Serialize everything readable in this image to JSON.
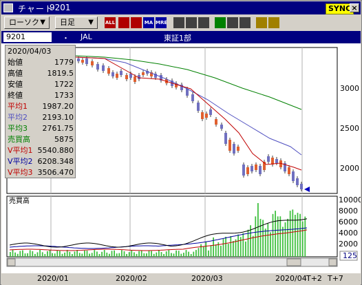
{
  "window": {
    "title": "チャート",
    "code": "9201",
    "sync_label": "SYNC",
    "close_label": "×"
  },
  "toolbar": {
    "chart_type": "ローソク",
    "period": "日足",
    "buttons": [
      {
        "name": "all-icon",
        "label": "ALL",
        "color": "#b00000"
      },
      {
        "name": "bar-icon",
        "label": "",
        "color": "#b00000"
      },
      {
        "name": "candle-icon",
        "label": "",
        "color": "#b00000"
      },
      {
        "name": "ma-icon",
        "label": "MA",
        "color": "#0000a0"
      },
      {
        "name": "mre-icon",
        "label": "MRE",
        "color": "#0000a0"
      },
      {
        "name": "zoom-icon",
        "label": "",
        "color": "#404040"
      },
      {
        "name": "settings-icon",
        "label": "",
        "color": "#404040"
      },
      {
        "name": "indicator-icon",
        "label": "",
        "color": "#404040"
      },
      {
        "name": "pen-icon",
        "label": "",
        "color": "#008000"
      },
      {
        "name": "pointer-icon",
        "label": "",
        "color": "#404040"
      },
      {
        "name": "eraser-icon",
        "label": "",
        "color": "#404040"
      },
      {
        "name": "key-icon",
        "label": "",
        "color": "#a08000"
      },
      {
        "name": "fib-icon",
        "label": "",
        "color": "#a08000"
      }
    ]
  },
  "info": {
    "code": "9201",
    "dot": "・",
    "name": "JAL",
    "market": "東証1部"
  },
  "panel": {
    "date": "2020/04/03",
    "rows": [
      {
        "k": "始値",
        "v": "1779",
        "c": "#000000"
      },
      {
        "k": "高値",
        "v": "1819.5",
        "c": "#000000"
      },
      {
        "k": "安値",
        "v": "1722",
        "c": "#000000"
      },
      {
        "k": "終値",
        "v": "1733",
        "c": "#000000"
      },
      {
        "k": "平均1",
        "v": "1987.20",
        "c": "#c00000"
      },
      {
        "k": "平均2",
        "v": "2193.10",
        "c": "#5050c0"
      },
      {
        "k": "平均3",
        "v": "2761.75",
        "c": "#008000"
      },
      {
        "k": "売買高",
        "v": "5875",
        "c": "#008000"
      },
      {
        "k": "V平均1",
        "v": "5540.880",
        "c": "#c00000"
      },
      {
        "k": "V平均2",
        "v": "6208.348",
        "c": "#0000a0"
      },
      {
        "k": "V平均3",
        "v": "3506.470",
        "c": "#c00000"
      }
    ]
  },
  "price_axis": [
    "3000",
    "2500",
    "2000"
  ],
  "volume_axis": [
    "10000",
    "8000",
    "6000",
    "4000",
    "2000"
  ],
  "volume_label": "売買高",
  "scroll_value": "125",
  "x_labels": [
    "2020/01",
    "2020/02",
    "2020/03",
    "2020/04",
    "T+2",
    "T+7"
  ],
  "colors": {
    "ma1": "#c00000",
    "ma2": "#5050c0",
    "ma3": "#008000",
    "up": "#e06030",
    "down": "#7070c0",
    "vol": "#40c040"
  }
}
